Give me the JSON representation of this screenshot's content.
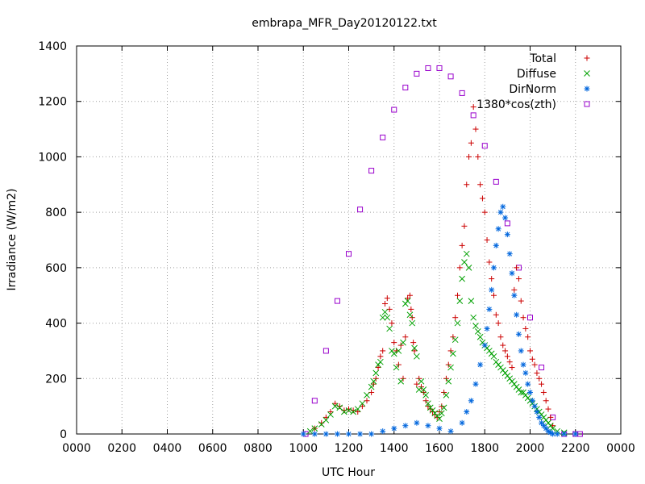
{
  "chart_data": {
    "type": "scatter",
    "title": "embrapa_MFR_Day20120122.txt",
    "xlabel": "UTC Hour",
    "ylabel": "Irradiance (W/m2)",
    "xlim": [
      0,
      24
    ],
    "ylim": [
      0,
      1400
    ],
    "x_tick_labels": [
      "0000",
      "0200",
      "0400",
      "0600",
      "0800",
      "1000",
      "1200",
      "1400",
      "1600",
      "1800",
      "2000",
      "2200",
      "0000"
    ],
    "y_ticks": [
      0,
      200,
      400,
      600,
      800,
      1000,
      1200,
      1400
    ],
    "grid": true,
    "legend_position": "top-right",
    "series": [
      {
        "name": "Total",
        "marker": "plus",
        "color": "#cc0000",
        "x": [
          10.5,
          10.8,
          11.0,
          11.2,
          11.4,
          11.6,
          11.8,
          12.0,
          12.2,
          12.4,
          12.6,
          12.8,
          13.0,
          13.1,
          13.2,
          13.3,
          13.4,
          13.5,
          13.6,
          13.7,
          13.8,
          13.9,
          14.0,
          14.1,
          14.2,
          14.3,
          14.4,
          14.5,
          14.6,
          14.7,
          14.75,
          14.8,
          14.85,
          14.9,
          15.0,
          15.1,
          15.2,
          15.3,
          15.4,
          15.5,
          15.6,
          15.7,
          15.8,
          15.9,
          16.0,
          16.1,
          16.2,
          16.3,
          16.4,
          16.5,
          16.6,
          16.7,
          16.8,
          16.9,
          17.0,
          17.1,
          17.2,
          17.3,
          17.4,
          17.5,
          17.6,
          17.7,
          17.8,
          17.9,
          18.0,
          18.1,
          18.2,
          18.3,
          18.4,
          18.5,
          18.6,
          18.7,
          18.8,
          18.9,
          19.0,
          19.1,
          19.2,
          19.3,
          19.4,
          19.5,
          19.6,
          19.7,
          19.8,
          19.9,
          20.0,
          20.1,
          20.2,
          20.3,
          20.4,
          20.5,
          20.6,
          20.7,
          20.8,
          20.9,
          21.0
        ],
        "y": [
          20,
          40,
          60,
          80,
          110,
          100,
          85,
          90,
          85,
          80,
          100,
          120,
          150,
          180,
          200,
          240,
          280,
          300,
          470,
          490,
          450,
          400,
          330,
          300,
          250,
          320,
          200,
          350,
          490,
          500,
          450,
          420,
          330,
          300,
          180,
          200,
          170,
          150,
          120,
          100,
          90,
          80,
          70,
          60,
          80,
          100,
          150,
          200,
          250,
          300,
          350,
          420,
          500,
          600,
          680,
          750,
          900,
          1000,
          1050,
          1180,
          1100,
          1000,
          900,
          850,
          800,
          700,
          620,
          560,
          500,
          430,
          400,
          350,
          320,
          300,
          280,
          260,
          240,
          520,
          600,
          560,
          480,
          420,
          380,
          350,
          300,
          270,
          250,
          220,
          200,
          180,
          150,
          120,
          90,
          60,
          30
        ]
      },
      {
        "name": "Diffuse",
        "marker": "cross",
        "color": "#00a000",
        "x": [
          10.3,
          10.5,
          10.8,
          11.0,
          11.2,
          11.4,
          11.6,
          11.8,
          12.0,
          12.2,
          12.4,
          12.6,
          12.8,
          13.0,
          13.1,
          13.2,
          13.3,
          13.4,
          13.5,
          13.6,
          13.7,
          13.8,
          13.9,
          14.0,
          14.1,
          14.2,
          14.3,
          14.4,
          14.5,
          14.6,
          14.7,
          14.8,
          14.9,
          15.0,
          15.1,
          15.2,
          15.3,
          15.4,
          15.5,
          15.6,
          15.7,
          15.8,
          15.9,
          16.0,
          16.1,
          16.2,
          16.3,
          16.4,
          16.5,
          16.6,
          16.7,
          16.8,
          16.9,
          17.0,
          17.1,
          17.2,
          17.3,
          17.4,
          17.5,
          17.6,
          17.7,
          17.8,
          17.9,
          18.0,
          18.1,
          18.2,
          18.3,
          18.4,
          18.5,
          18.6,
          18.7,
          18.8,
          18.9,
          19.0,
          19.1,
          19.2,
          19.3,
          19.4,
          19.5,
          19.6,
          19.7,
          19.8,
          19.9,
          20.0,
          20.1,
          20.2,
          20.3,
          20.4,
          20.5,
          20.6,
          20.7,
          20.8,
          20.9,
          21.0,
          21.2,
          21.5
        ],
        "y": [
          10,
          20,
          35,
          50,
          70,
          100,
          95,
          80,
          85,
          80,
          90,
          110,
          140,
          170,
          190,
          220,
          250,
          260,
          420,
          440,
          420,
          380,
          300,
          290,
          240,
          300,
          190,
          330,
          470,
          480,
          430,
          400,
          310,
          280,
          160,
          190,
          160,
          140,
          110,
          95,
          85,
          75,
          65,
          55,
          75,
          95,
          140,
          190,
          240,
          290,
          340,
          400,
          480,
          560,
          620,
          650,
          600,
          480,
          420,
          390,
          370,
          350,
          330,
          320,
          310,
          300,
          290,
          280,
          260,
          250,
          240,
          230,
          220,
          210,
          200,
          190,
          180,
          170,
          160,
          150,
          150,
          140,
          130,
          120,
          110,
          100,
          90,
          80,
          70,
          60,
          50,
          40,
          30,
          20,
          10,
          5
        ]
      },
      {
        "name": "DirNorm",
        "marker": "star",
        "color": "#0066dd",
        "x": [
          10.0,
          10.5,
          11.0,
          11.5,
          12.0,
          12.5,
          13.0,
          13.5,
          14.0,
          14.5,
          15.0,
          15.5,
          16.0,
          16.5,
          17.0,
          17.2,
          17.4,
          17.6,
          17.8,
          18.0,
          18.1,
          18.2,
          18.3,
          18.4,
          18.5,
          18.6,
          18.7,
          18.8,
          18.9,
          19.0,
          19.1,
          19.2,
          19.3,
          19.4,
          19.5,
          19.6,
          19.7,
          19.8,
          19.9,
          20.0,
          20.1,
          20.2,
          20.3,
          20.4,
          20.5,
          20.6,
          20.7,
          20.8,
          20.9,
          21.0,
          21.2,
          21.5,
          22.0
        ],
        "y": [
          0,
          0,
          0,
          0,
          0,
          0,
          0,
          10,
          20,
          30,
          40,
          30,
          20,
          10,
          40,
          80,
          120,
          180,
          250,
          320,
          380,
          450,
          520,
          600,
          680,
          740,
          800,
          820,
          780,
          720,
          650,
          580,
          500,
          430,
          360,
          300,
          250,
          220,
          180,
          150,
          120,
          100,
          80,
          60,
          40,
          30,
          20,
          10,
          5,
          0,
          0,
          0,
          0
        ]
      },
      {
        "name": "1380*cos(zth)",
        "marker": "square",
        "color": "#9900cc",
        "x": [
          10.1,
          10.5,
          11.0,
          11.5,
          12.0,
          12.5,
          13.0,
          13.5,
          14.0,
          14.5,
          15.0,
          15.5,
          16.0,
          16.5,
          17.0,
          17.5,
          18.0,
          18.5,
          19.0,
          19.5,
          20.0,
          20.5,
          21.0,
          21.5,
          22.0,
          22.2
        ],
        "y": [
          0,
          120,
          300,
          480,
          650,
          810,
          950,
          1070,
          1170,
          1250,
          1300,
          1320,
          1320,
          1290,
          1230,
          1150,
          1040,
          910,
          760,
          600,
          420,
          240,
          60,
          0,
          0,
          0
        ]
      }
    ]
  }
}
